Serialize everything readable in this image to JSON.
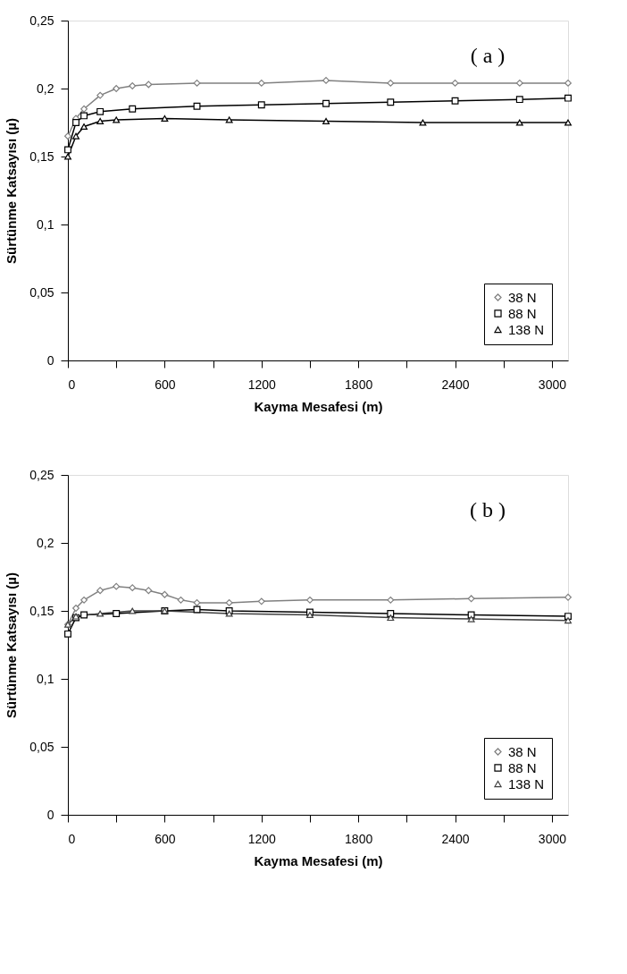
{
  "chart_data": [
    {
      "type": "line",
      "xlabel": "Kayma Mesafesi  (m)",
      "ylabel": "Sürtünme  Katsayısı  (µ)",
      "annotations": [
        "( a )"
      ],
      "grid": false,
      "legend": "bottom right",
      "xlim": [
        0,
        3100
      ],
      "ylim": [
        0,
        0.25
      ],
      "xticks": [
        0,
        {
          "value": 300,
          "label": null
        },
        600,
        {
          "value": 900,
          "label": null
        },
        1200,
        {
          "value": 1500,
          "label": null
        },
        1800,
        {
          "value": 2100,
          "label": null
        },
        2400,
        {
          "value": 2700,
          "label": null
        },
        3000
      ],
      "yticks": [
        0,
        {
          "value": 0.05,
          "label": "0,05"
        },
        {
          "value": 0.1,
          "label": "0,1"
        },
        {
          "value": 0.15,
          "label": "0,15"
        },
        {
          "value": 0.2,
          "label": "0,2"
        },
        {
          "value": 0.25,
          "label": "0,25"
        }
      ],
      "series": [
        {
          "name": "38 N",
          "color": "#808080",
          "marker": "diamond",
          "x": [
            0,
            50,
            100,
            200,
            300,
            400,
            500,
            800,
            1200,
            1600,
            2000,
            2400,
            2800,
            3100
          ],
          "values": [
            0.165,
            0.178,
            0.185,
            0.195,
            0.2,
            0.202,
            0.203,
            0.204,
            0.204,
            0.206,
            0.204,
            0.204,
            0.204,
            0.204
          ]
        },
        {
          "name": "88 N",
          "color": "#000000",
          "marker": "square",
          "x": [
            0,
            50,
            100,
            200,
            400,
            800,
            1200,
            1600,
            2000,
            2400,
            2800,
            3100
          ],
          "values": [
            0.155,
            0.175,
            0.18,
            0.183,
            0.185,
            0.187,
            0.188,
            0.189,
            0.19,
            0.191,
            0.192,
            0.193
          ]
        },
        {
          "name": "138 N",
          "color": "#000000",
          "marker": "triangle",
          "x": [
            0,
            50,
            100,
            200,
            300,
            600,
            1000,
            1600,
            2200,
            2800,
            3100
          ],
          "values": [
            0.15,
            0.165,
            0.172,
            0.176,
            0.177,
            0.178,
            0.177,
            0.176,
            0.175,
            0.175,
            0.175
          ]
        }
      ]
    },
    {
      "type": "line",
      "xlabel": "Kayma Mesafesi  (m)",
      "ylabel": "Sürtünme  Katsayısı  (µ)",
      "annotations": [
        "( b )"
      ],
      "grid": false,
      "legend": "bottom right",
      "xlim": [
        0,
        3100
      ],
      "ylim": [
        0,
        0.25
      ],
      "xticks": [
        0,
        {
          "value": 300,
          "label": null
        },
        600,
        {
          "value": 900,
          "label": null
        },
        1200,
        {
          "value": 1500,
          "label": null
        },
        1800,
        {
          "value": 2100,
          "label": null
        },
        2400,
        {
          "value": 2700,
          "label": null
        },
        3000
      ],
      "yticks": [
        0,
        {
          "value": 0.05,
          "label": "0,05"
        },
        {
          "value": 0.1,
          "label": "0,1"
        },
        {
          "value": 0.15,
          "label": "0,15"
        },
        {
          "value": 0.2,
          "label": "0,2"
        },
        {
          "value": 0.25,
          "label": "0,25"
        }
      ],
      "series": [
        {
          "name": "38 N",
          "color": "#808080",
          "marker": "diamond",
          "x": [
            0,
            50,
            100,
            200,
            300,
            400,
            500,
            600,
            700,
            800,
            1000,
            1200,
            1500,
            2000,
            2500,
            3100
          ],
          "values": [
            0.14,
            0.152,
            0.158,
            0.165,
            0.168,
            0.167,
            0.165,
            0.162,
            0.158,
            0.156,
            0.156,
            0.157,
            0.158,
            0.158,
            0.159,
            0.16
          ]
        },
        {
          "name": "88 N",
          "color": "#000000",
          "marker": "square",
          "x": [
            0,
            50,
            100,
            300,
            600,
            800,
            1000,
            1500,
            2000,
            2500,
            3100
          ],
          "values": [
            0.133,
            0.145,
            0.147,
            0.148,
            0.15,
            0.151,
            0.15,
            0.149,
            0.148,
            0.147,
            0.146
          ]
        },
        {
          "name": "138 N",
          "color": "#404040",
          "marker": "triangle",
          "x": [
            0,
            50,
            200,
            400,
            600,
            1000,
            1500,
            2000,
            2500,
            3100
          ],
          "values": [
            0.14,
            0.146,
            0.148,
            0.15,
            0.15,
            0.148,
            0.147,
            0.145,
            0.144,
            0.143
          ]
        }
      ]
    }
  ]
}
